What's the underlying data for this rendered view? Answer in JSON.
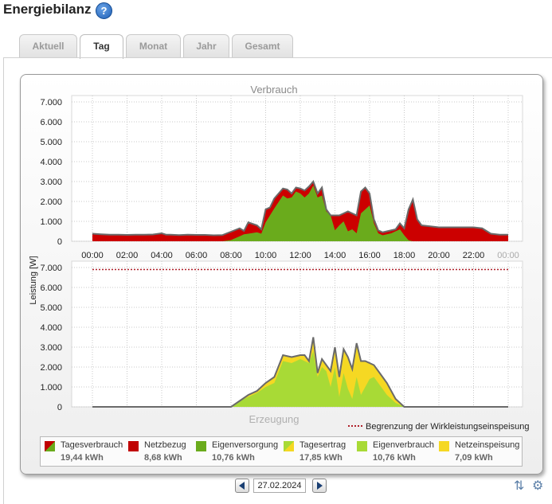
{
  "page": {
    "title": "Energiebilanz",
    "help_icon": "?"
  },
  "tabs": [
    {
      "label": "Aktuell",
      "active": false
    },
    {
      "label": "Tag",
      "active": true
    },
    {
      "label": "Monat",
      "active": false
    },
    {
      "label": "Jahr",
      "active": false
    },
    {
      "label": "Gesamt",
      "active": false
    }
  ],
  "chart_data": [
    {
      "type": "area",
      "title": "Verbrauch",
      "ylabel": "Leistung [W]",
      "ylim": [
        0,
        7000
      ],
      "y_ticks": [
        "0",
        "1.000",
        "2.000",
        "3.000",
        "4.000",
        "5.000",
        "6.000",
        "7.000"
      ],
      "x_ticks": [
        "00:00",
        "02:00",
        "04:00",
        "06:00",
        "08:00",
        "10:00",
        "12:00",
        "14:00",
        "16:00",
        "18:00",
        "20:00",
        "22:00",
        "00:00"
      ],
      "x_hours": [
        0.0,
        0.5,
        1.0,
        1.5,
        2.0,
        2.5,
        3.0,
        3.5,
        4.0,
        4.25,
        4.5,
        5.0,
        5.5,
        6.0,
        6.5,
        7.0,
        7.5,
        8.0,
        8.5,
        8.75,
        9.0,
        9.5,
        9.75,
        10.0,
        10.25,
        10.5,
        11.0,
        11.25,
        11.5,
        11.75,
        12.0,
        12.25,
        12.5,
        12.75,
        13.0,
        13.25,
        13.5,
        13.75,
        14.0,
        14.25,
        14.5,
        14.75,
        15.0,
        15.25,
        15.5,
        15.75,
        16.0,
        16.25,
        16.5,
        16.75,
        17.0,
        17.25,
        17.5,
        17.75,
        18.0,
        18.25,
        18.5,
        18.75,
        19.0,
        19.5,
        20.0,
        20.5,
        21.0,
        21.5,
        22.0,
        22.5,
        23.0,
        23.5,
        24.0
      ],
      "series": [
        {
          "name": "Tagesverbrauch",
          "color": "#6a6a6a",
          "values": [
            380,
            350,
            330,
            330,
            320,
            330,
            330,
            340,
            400,
            330,
            330,
            310,
            330,
            320,
            320,
            300,
            310,
            480,
            650,
            520,
            950,
            800,
            600,
            1600,
            1700,
            2150,
            2650,
            2600,
            2400,
            2700,
            2650,
            2550,
            2750,
            3000,
            2400,
            2700,
            1600,
            1300,
            1300,
            1300,
            1400,
            1500,
            1400,
            1300,
            2500,
            2700,
            2400,
            1100,
            550,
            450,
            500,
            550,
            600,
            900,
            650,
            1600,
            2100,
            1100,
            800,
            750,
            700,
            700,
            700,
            700,
            700,
            650,
            380,
            330,
            330
          ]
        },
        {
          "name": "Eigenversorgung",
          "color": "#6aab1c",
          "values": [
            0,
            0,
            0,
            0,
            0,
            0,
            0,
            0,
            0,
            0,
            0,
            0,
            0,
            0,
            0,
            0,
            0,
            60,
            250,
            350,
            380,
            450,
            380,
            950,
            1300,
            1650,
            2300,
            2150,
            2200,
            2500,
            2400,
            2200,
            2400,
            2800,
            2200,
            2300,
            1500,
            1300,
            550,
            800,
            1000,
            500,
            600,
            400,
            1400,
            1600,
            1800,
            900,
            400,
            300,
            350,
            400,
            500,
            600,
            300,
            50,
            0,
            0,
            0,
            0,
            0,
            0,
            0,
            0,
            0,
            0,
            0,
            0,
            0
          ]
        }
      ]
    },
    {
      "type": "area",
      "title": "Erzeugung",
      "ylim": [
        0,
        7000
      ],
      "y_ticks": [
        "0",
        "1.000",
        "2.000",
        "3.000",
        "4.000",
        "5.000",
        "6.000",
        "7.000"
      ],
      "limit_line": {
        "value": 6900,
        "label": "Begrenzung der Wirkleistungseinspeisung",
        "color": "#b0202a"
      },
      "x_hours": [
        0,
        8.0,
        8.5,
        9.0,
        9.5,
        10.0,
        10.5,
        11.0,
        11.5,
        12.0,
        12.25,
        12.5,
        12.75,
        13.0,
        13.25,
        13.5,
        13.75,
        14.0,
        14.25,
        14.5,
        14.75,
        15.0,
        15.25,
        15.5,
        15.75,
        16.0,
        16.25,
        16.5,
        16.75,
        17.0,
        17.5,
        18.0,
        18.25,
        24.0
      ],
      "series": [
        {
          "name": "Tagesertrag",
          "color": "#6a6a6a",
          "values": [
            0,
            0,
            300,
            600,
            800,
            1200,
            1500,
            2600,
            2500,
            2600,
            2600,
            2300,
            3500,
            1700,
            2400,
            2100,
            1800,
            3000,
            1500,
            2900,
            2500,
            1900,
            3200,
            2300,
            2300,
            2200,
            2100,
            1800,
            1500,
            1200,
            400,
            0,
            0,
            0
          ]
        },
        {
          "name": "Eigenverbrauch",
          "color": "#a8da36",
          "values": [
            0,
            0,
            300,
            500,
            700,
            1000,
            1200,
            2300,
            2200,
            2400,
            2300,
            2200,
            2800,
            1500,
            2000,
            1800,
            1000,
            2000,
            500,
            1700,
            900,
            400,
            1500,
            600,
            1000,
            1400,
            1500,
            1200,
            900,
            600,
            200,
            0,
            0,
            0
          ]
        }
      ]
    }
  ],
  "legend": [
    {
      "name": "Tagesverbrauch",
      "value": "19,44 kWh",
      "color_a": "#c00000",
      "color_b": "#6aab1c"
    },
    {
      "name": "Netzbezug",
      "value": "8,68 kWh",
      "color_a": "#c00000",
      "color_b": "#c00000"
    },
    {
      "name": "Eigenversorgung",
      "value": "10,76 kWh",
      "color_a": "#6aab1c",
      "color_b": "#6aab1c"
    },
    {
      "name": "Tagesertrag",
      "value": "17,85 kWh",
      "color_a": "#a8da36",
      "color_b": "#f5d823"
    },
    {
      "name": "Eigenverbrauch",
      "value": "10,76 kWh",
      "color_a": "#a8da36",
      "color_b": "#a8da36"
    },
    {
      "name": "Netzeinspeisung",
      "value": "7,09 kWh",
      "color_a": "#f5d823",
      "color_b": "#f5d823"
    }
  ],
  "nav": {
    "date": "27.02.2024"
  }
}
